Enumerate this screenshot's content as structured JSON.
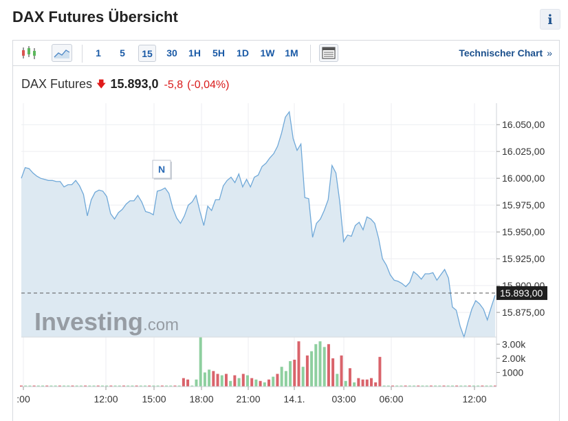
{
  "page": {
    "title": "DAX Futures Übersicht",
    "info_label": "i"
  },
  "toolbar": {
    "icons": [
      "candlestick-icon",
      "area-chart-icon",
      "table-icon"
    ],
    "timeframes": [
      "1",
      "5",
      "15",
      "30",
      "1H",
      "5H",
      "1D",
      "1W",
      "1M"
    ],
    "active_timeframe": "15",
    "tech_chart_label": "Technischer Chart",
    "tech_chart_arrow": "»"
  },
  "quote": {
    "name": "DAX Futures",
    "price": "15.893,0",
    "change": "-5,8",
    "change_pct": "(-0,04%)",
    "direction": "down"
  },
  "watermark": {
    "main": "Investing",
    "suffix": ".com"
  },
  "news_marker": "N",
  "colors": {
    "line": "#6fa8d8",
    "area": "#dde9f2",
    "up": "#8ecf9f",
    "down": "#d9636b",
    "accent": "#1a5aa6",
    "negative": "#e01b1b"
  },
  "chart_data": [
    {
      "type": "area",
      "title": "",
      "x_ticks": [
        ":00",
        "12:00",
        "15:00",
        "18:00",
        "21:00",
        "14.1.",
        "03:00",
        "06:00",
        "12:00"
      ],
      "y_ticks": [
        "16.050,00",
        "16.025,00",
        "16.000,00",
        "15.975,00",
        "15.950,00",
        "15.925,00",
        "15.900,00",
        "15.875,00"
      ],
      "ylim": [
        15852,
        16070
      ],
      "current_price": 15893,
      "current_price_label": "15.893,00",
      "grid": true,
      "series": [
        {
          "values": [
            16000,
            16010,
            16009,
            16005,
            16002,
            16000,
            15999,
            15998,
            15998,
            15997,
            15997,
            15992,
            15994,
            15994,
            15998,
            15993,
            15985,
            15965,
            15980,
            15987,
            15989,
            15988,
            15983,
            15967,
            15962,
            15968,
            15971,
            15976,
            15979,
            15979,
            15984,
            15978,
            15969,
            15968,
            15966,
            15988,
            15989,
            15991,
            15986,
            15972,
            15963,
            15958,
            15965,
            15975,
            15978,
            15984,
            15969,
            15956,
            15974,
            15970,
            15980,
            15980,
            15993,
            15998,
            16001,
            15996,
            16004,
            15992,
            15999,
            15992,
            16001,
            16003,
            16011,
            16014,
            16019,
            16023,
            16030,
            16042,
            16057,
            16062,
            16037,
            16026,
            16032,
            15982,
            15981,
            15945,
            15958,
            15962,
            15970,
            15980,
            16012,
            16005,
            15978,
            15941,
            15947,
            15946,
            15956,
            15959,
            15952,
            15964,
            15962,
            15958,
            15944,
            15925,
            15919,
            15910,
            15905,
            15904,
            15902,
            15899,
            15903,
            15913,
            15910,
            15906,
            15911,
            15911,
            15912,
            15905,
            15910,
            15915,
            15907,
            15880,
            15877,
            15862,
            15852,
            15866,
            15878,
            15886,
            15883,
            15878,
            15868,
            15880,
            15891
          ]
        }
      ]
    },
    {
      "type": "bar",
      "title": "",
      "y_ticks": [
        "3.00k",
        "2.00k",
        "1000"
      ],
      "ylim": [
        0,
        3500
      ],
      "series": [
        {
          "name": "up",
          "values": [
            0,
            0,
            0,
            0,
            0,
            0,
            0,
            0,
            0,
            0,
            0,
            0,
            0,
            0,
            0,
            0,
            0,
            0,
            0,
            0,
            0,
            0,
            0,
            0,
            0,
            0,
            0,
            0,
            0,
            0,
            0,
            0,
            0,
            0,
            0,
            0,
            0,
            0,
            0,
            0,
            0,
            500,
            3500,
            1000,
            1200,
            0,
            0,
            800,
            0,
            400,
            0,
            600,
            0,
            800,
            0,
            500,
            0,
            300,
            0,
            700,
            0,
            1400,
            1100,
            1800,
            0,
            0,
            1400,
            0,
            2500,
            3000,
            3200,
            2800,
            0,
            0,
            900,
            0,
            400,
            0,
            300,
            0,
            0,
            0,
            0,
            0,
            0,
            0,
            0,
            0,
            0,
            0,
            0,
            0,
            0,
            0,
            0,
            0,
            0,
            0,
            0,
            0,
            0,
            0,
            0,
            0,
            0,
            0,
            0,
            0,
            0,
            0,
            0,
            0
          ]
        },
        {
          "name": "down",
          "values": [
            0,
            0,
            0,
            0,
            0,
            0,
            0,
            0,
            0,
            0,
            0,
            0,
            0,
            0,
            0,
            0,
            0,
            0,
            0,
            0,
            0,
            0,
            0,
            0,
            0,
            0,
            0,
            0,
            0,
            0,
            0,
            0,
            0,
            0,
            0,
            0,
            0,
            0,
            600,
            500,
            0,
            0,
            0,
            0,
            0,
            1100,
            900,
            0,
            900,
            0,
            800,
            0,
            900,
            0,
            600,
            0,
            400,
            0,
            500,
            0,
            900,
            0,
            0,
            0,
            1900,
            3200,
            0,
            2200,
            0,
            0,
            0,
            0,
            3000,
            2000,
            0,
            2200,
            0,
            1300,
            0,
            600,
            500,
            500,
            600,
            300,
            2100,
            0,
            0,
            0,
            0,
            0,
            0,
            0,
            0,
            0,
            0,
            0,
            0,
            0,
            0,
            0,
            0,
            0,
            0,
            0,
            0,
            0,
            0,
            0,
            0,
            0,
            0,
            0,
            0,
            0
          ]
        }
      ]
    }
  ]
}
